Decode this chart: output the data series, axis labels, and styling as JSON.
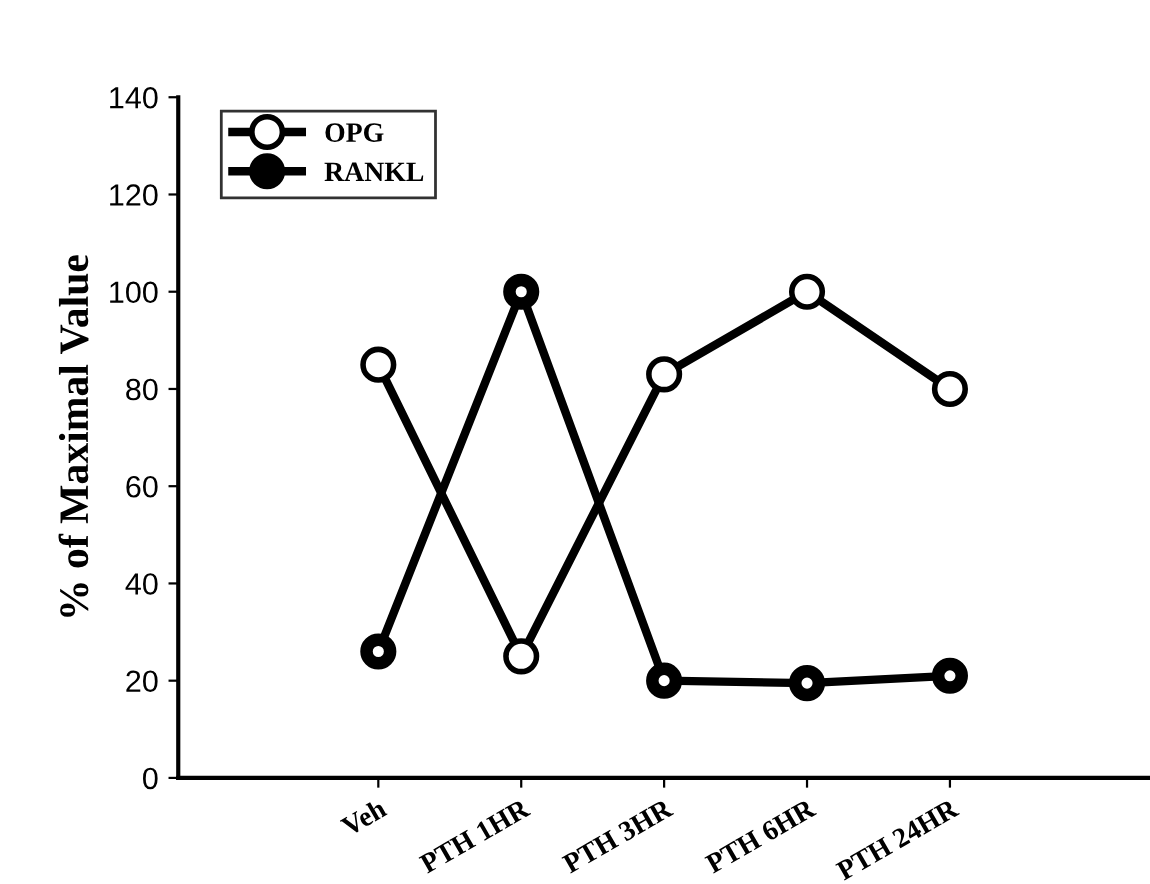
{
  "chart_data": {
    "type": "line",
    "ylabel": "% of Maximal Value",
    "categories": [
      "Veh",
      "PTH 1HR",
      "PTH 3HR",
      "PTH 6HR",
      "PTH 24HR"
    ],
    "series": [
      {
        "name": "OPG",
        "color": "#000000",
        "marker": "circle",
        "values": [
          85,
          25,
          83,
          100,
          80
        ]
      },
      {
        "name": "RANKL",
        "color": "#000000",
        "marker": "circle",
        "values": [
          26,
          100,
          20,
          19.5,
          21
        ]
      }
    ],
    "ylim": [
      0,
      140
    ],
    "yticks": [
      0,
      20,
      40,
      60,
      80,
      100,
      120,
      140
    ],
    "grid": false,
    "legend": "top left",
    "line_style": "solid"
  }
}
